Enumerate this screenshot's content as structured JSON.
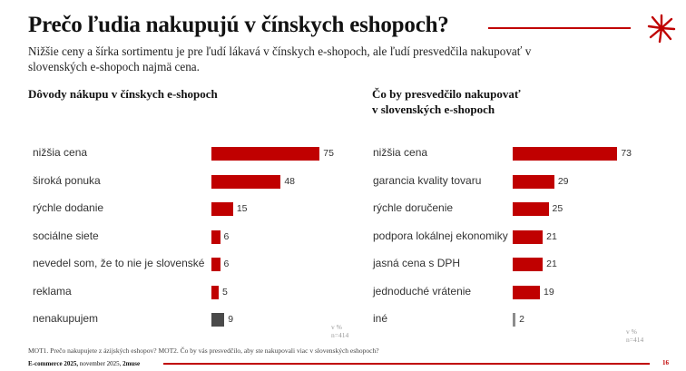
{
  "header": {
    "title": "Prečo ľudia nakupujú v čínskych eshopoch?",
    "subtitle": "Nižšie ceny a šírka sortimentu je pre ľudí lákavá v čínskych e-shopoch, ale ľudí presvedčila nakupovať v slovenských e-shopoch najmä cena.",
    "logo_icon": "asterisk-burst-icon",
    "accent_color": "#c00000"
  },
  "left_panel": {
    "title": "Dôvody nákupu v čínskych e-shopoch",
    "unit_note": "v %",
    "sample_note": "n=414"
  },
  "right_panel": {
    "title_line1": "Čo by presvedčilo nakupovať",
    "title_line2": "v slovenských e-shopoch",
    "unit_note": "v %",
    "sample_note": "n=414"
  },
  "chart_data": [
    {
      "type": "bar",
      "orientation": "horizontal",
      "title": "Dôvody nákupu v čínskych e-shopoch",
      "categories": [
        "nižšia cena",
        "široká ponuka",
        "rýchle dodanie",
        "sociálne siete",
        "nevedel som, že to nie je slovenské",
        "reklama",
        "nenakupujem"
      ],
      "values": [
        75,
        48,
        15,
        6,
        6,
        5,
        9
      ],
      "colors": [
        "#c00000",
        "#c00000",
        "#c00000",
        "#c00000",
        "#c00000",
        "#c00000",
        "#4a4a4a"
      ],
      "xlabel": "",
      "ylabel": "",
      "unit": "v %",
      "n": "n=414",
      "xlim": [
        0,
        100
      ],
      "grid": false,
      "legend": "none"
    },
    {
      "type": "bar",
      "orientation": "horizontal",
      "title": "Čo by presvedčilo nakupovať v slovenských e-shopoch",
      "categories": [
        "nižšia cena",
        "garancia kvality tovaru",
        "rýchle doručenie",
        "podpora lokálnej ekonomiky",
        "jasná cena s DPH",
        "jednoduché vrátenie",
        "iné"
      ],
      "values": [
        73,
        29,
        25,
        21,
        21,
        19,
        2
      ],
      "colors": [
        "#c00000",
        "#c00000",
        "#c00000",
        "#c00000",
        "#c00000",
        "#c00000",
        "#8c8c8c"
      ],
      "xlabel": "",
      "ylabel": "",
      "unit": "v %",
      "n": "n=414",
      "xlim": [
        0,
        100
      ],
      "grid": false,
      "legend": "none"
    }
  ],
  "footer": {
    "question_note": "MOT1. Prečo nakupujete z ázijských eshopov? MOT2. Čo by vás presvedčilo, aby ste nakupovali viac v slovenských eshopoch?",
    "source_bold1": "E-commerce 2025,",
    "source_regular": " november 2025, ",
    "source_bold2": "2muse",
    "page_number": "16"
  }
}
